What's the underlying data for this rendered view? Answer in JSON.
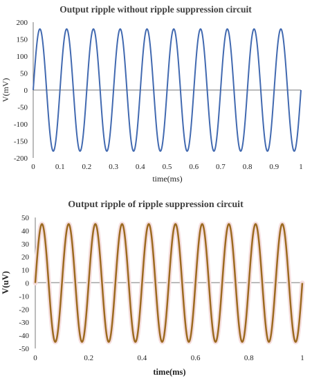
{
  "chart_data": [
    {
      "type": "line",
      "title": "Output ripple without ripple suppression circuit",
      "xlabel": "time(ms)",
      "ylabel": "V(mV)",
      "xlim": [
        0,
        1
      ],
      "ylim": [
        -200,
        200
      ],
      "x_ticks": [
        "0",
        "0.1",
        "0.2",
        "0.3",
        "0.4",
        "0.5",
        "0.6",
        "0.7",
        "0.8",
        "0.9",
        "1"
      ],
      "y_ticks": [
        "200",
        "150",
        "100",
        "50",
        "0",
        "-50",
        "-100",
        "-150",
        "-200"
      ],
      "grid": false,
      "series": [
        {
          "color": "#4169b0",
          "amplitude": 180,
          "frequency_khz": 10,
          "phase": 0
        }
      ]
    },
    {
      "type": "line",
      "title": "Output ripple of ripple suppression circuit",
      "xlabel": "time(ms)",
      "ylabel": "V(uV)",
      "xlim": [
        0,
        1
      ],
      "ylim": [
        -50,
        50
      ],
      "x_ticks": [
        "0",
        "0.2",
        "0.4",
        "0.6",
        "0.8",
        "1"
      ],
      "y_ticks": [
        "50",
        "40",
        "30",
        "20",
        "10",
        "0",
        "-10",
        "-20",
        "-30",
        "-40",
        "-50"
      ],
      "grid": false,
      "series": [
        {
          "color": "#9c6a1f",
          "amplitude": 45,
          "frequency_khz": 10,
          "phase": 0
        }
      ]
    }
  ]
}
